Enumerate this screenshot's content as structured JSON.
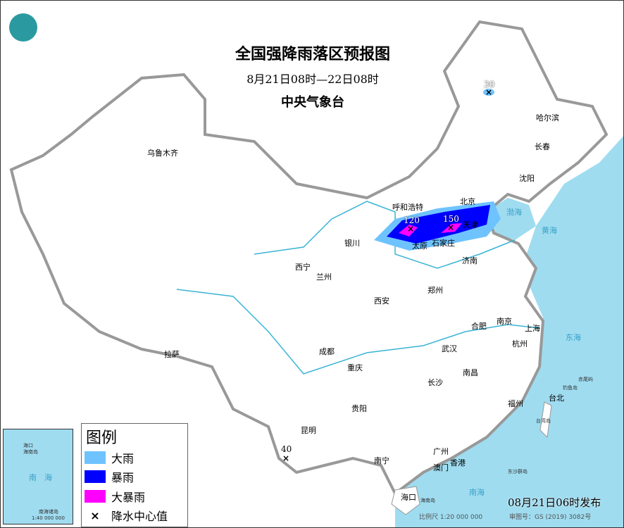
{
  "title": "全国强降雨落区预报图",
  "subtitle": "8月21日08时—22日08时",
  "agency": "中央气象台",
  "logo": "中央气象台 logo",
  "colors": {
    "heavy_rain": "#6ec3ff",
    "rainstorm": "#0000ff",
    "heavy_rainstorm": "#ff00ff",
    "sea": "#9fdcf0",
    "border": "#999999"
  },
  "legend": {
    "title": "图例",
    "items": [
      {
        "label": "大雨",
        "color": "#6ec3ff"
      },
      {
        "label": "暴雨",
        "color": "#0000ff"
      },
      {
        "label": "大暴雨",
        "color": "#ff00ff"
      },
      {
        "label": "降水中心值",
        "symbol": "×"
      }
    ]
  },
  "centers": [
    {
      "value": "30",
      "place": "黑龙江北部"
    },
    {
      "value": "120",
      "place": "山西北部"
    },
    {
      "value": "150",
      "place": "河北中部"
    },
    {
      "value": "40",
      "place": "云南南部"
    }
  ],
  "cities": [
    "乌鲁木齐",
    "哈尔滨",
    "长春",
    "沈阳",
    "呼和浩特",
    "北京",
    "天津",
    "银川",
    "太原",
    "石家庄",
    "西宁",
    "兰州",
    "济南",
    "郑州",
    "西安",
    "合肥",
    "南京",
    "上海",
    "杭州",
    "武汉",
    "成都",
    "重庆",
    "拉萨",
    "南昌",
    "长沙",
    "贵阳",
    "福州",
    "台北",
    "昆明",
    "广州",
    "南宁",
    "香港",
    "澳门",
    "海口"
  ],
  "seas": [
    "渤海",
    "黄海",
    "东海",
    "南海",
    "海"
  ],
  "islands": [
    "赤尾屿",
    "钓鱼岛",
    "台湾岛",
    "东沙群岛",
    "海南岛"
  ],
  "inset": {
    "title": "南海诸岛",
    "scale": "1:40 000 000",
    "labels": [
      "海口",
      "海南岛",
      "南",
      "海"
    ]
  },
  "issued": "08月21日06时发布",
  "scale": "比例尺 1:20 000 000",
  "approval": "审图号：GS (2019) 3082号"
}
